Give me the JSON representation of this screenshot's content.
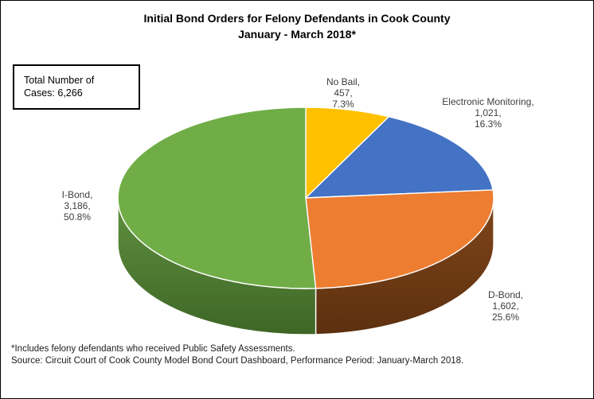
{
  "window": {
    "background": "#ffffff",
    "border_color": "#000000"
  },
  "title": {
    "line1": "Initial Bond Orders for Felony Defendants in Cook County",
    "line2": "January - March 2018*"
  },
  "total_box": {
    "text": "Total Number of Cases: 6,266"
  },
  "chart_data": {
    "type": "pie",
    "effect": "3d",
    "title": "Initial Bond Orders for Felony Defendants in Cook County January - March 2018*",
    "total_cases": 6266,
    "start_angle_deg": 0,
    "direction": "clockwise",
    "label_format": "name, value, percent",
    "slices": [
      {
        "label": "No Bail",
        "value": 457,
        "value_label": "457",
        "pct": 7.3,
        "pct_label": "7.3%",
        "color": "#FFC000",
        "side_from": null,
        "side_to": null
      },
      {
        "label": "Electronic Monitoring",
        "value": 1021,
        "value_label": "1,021",
        "pct": 16.3,
        "pct_label": "16.3%",
        "color": "#4472C4",
        "side_from": null,
        "side_to": null
      },
      {
        "label": "D-Bond",
        "value": 1602,
        "value_label": "1,602",
        "pct": 25.6,
        "pct_label": "25.6%",
        "color": "#ED7D31",
        "side_from": "#81461a",
        "side_to": "#5c300f"
      },
      {
        "label": "I-Bond",
        "value": 3186,
        "value_label": "3,186",
        "pct": 50.8,
        "pct_label": "50.8%",
        "color": "#70AD47",
        "side_from": "#609140",
        "side_to": "#3e6626"
      }
    ],
    "slice_border_color": "#ffffff"
  },
  "footnotes": {
    "line1": "*Includes felony defendants who received Public Safety Assessments.",
    "line2": "Source: Circuit Court of Cook County Model Bond Court Dashboard, Performance Period: January-March 2018."
  }
}
